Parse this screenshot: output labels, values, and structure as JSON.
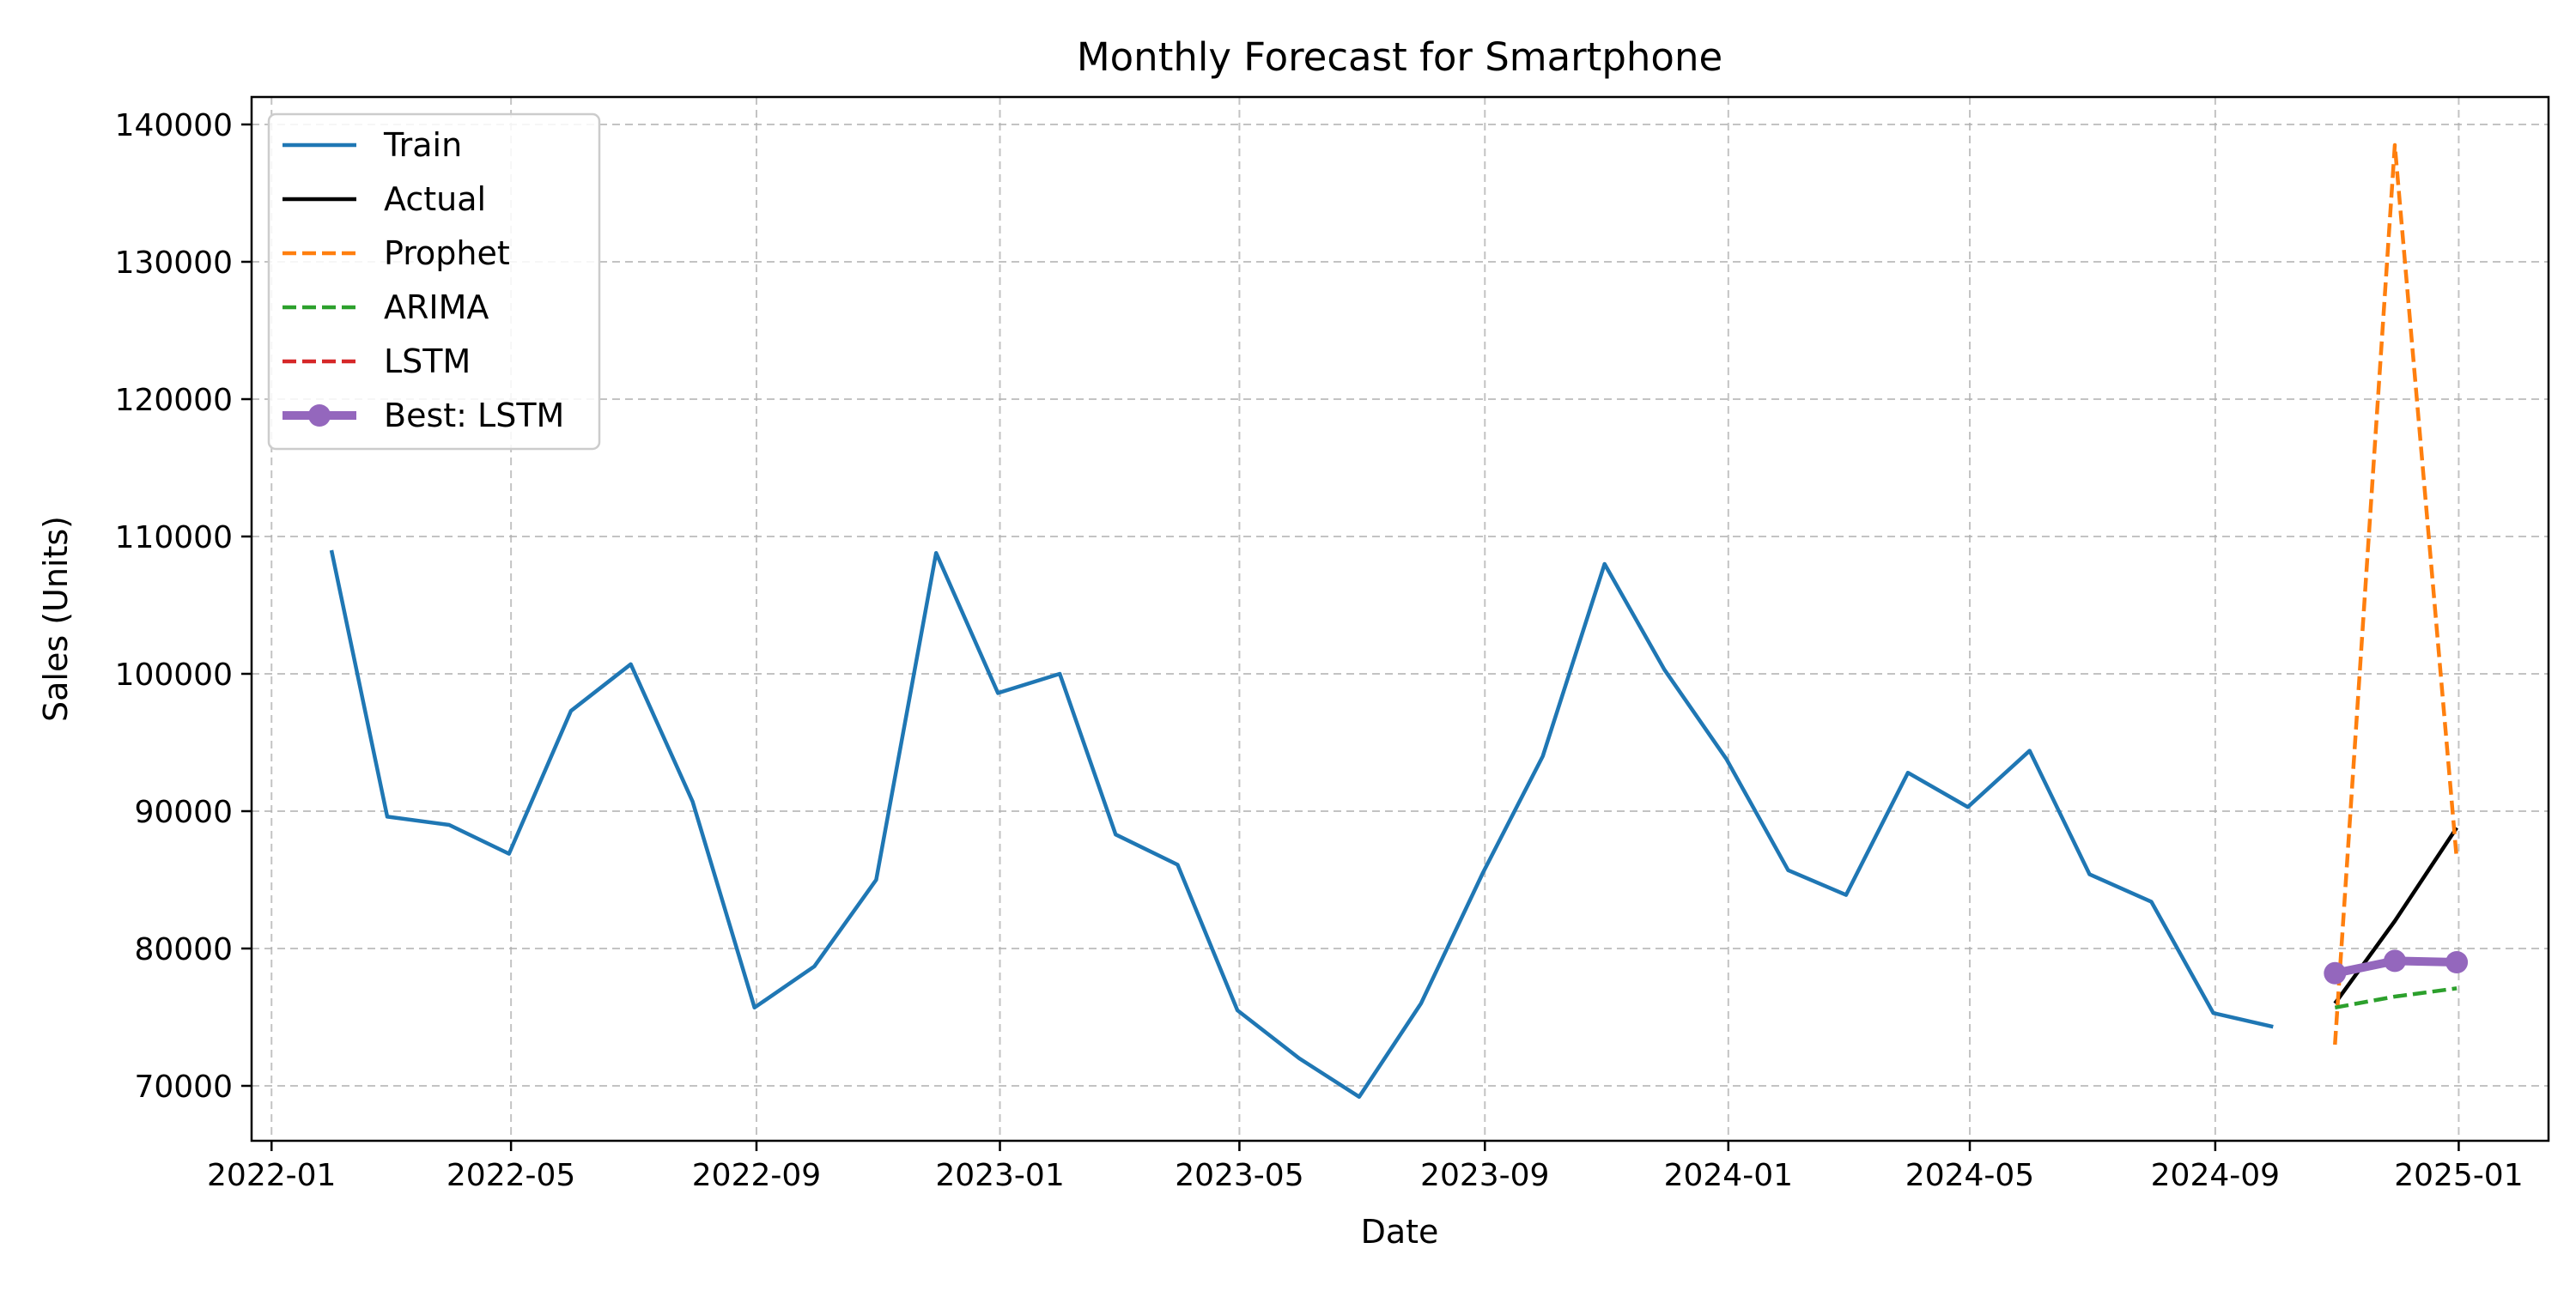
{
  "chart_data": {
    "type": "line",
    "title": "Monthly Forecast for Smartphone",
    "xlabel": "Date",
    "ylabel": "Sales (Units)",
    "x_ticks": [
      "2022-01",
      "2022-05",
      "2022-09",
      "2023-01",
      "2023-05",
      "2023-09",
      "2024-01",
      "2024-05",
      "2024-09",
      "2025-01"
    ],
    "y_ticks": [
      70000,
      80000,
      90000,
      100000,
      110000,
      120000,
      130000,
      140000
    ],
    "y_tick_labels": [
      "70000",
      "80000",
      "90000",
      "100000",
      "110000",
      "120000",
      "130000",
      "140000"
    ],
    "ylim": [
      66000,
      142000
    ],
    "xlim": [
      "2021-12-22",
      "2025-02-15"
    ],
    "grid": true,
    "legend_position": "top-left",
    "series": [
      {
        "name": "Train",
        "color": "#1f77b4",
        "style": "solid",
        "x": [
          "2022-01-31",
          "2022-02-28",
          "2022-03-31",
          "2022-04-30",
          "2022-05-31",
          "2022-06-30",
          "2022-07-31",
          "2022-08-31",
          "2022-09-30",
          "2022-10-31",
          "2022-11-30",
          "2022-12-31",
          "2023-01-31",
          "2023-02-28",
          "2023-03-31",
          "2023-04-30",
          "2023-05-31",
          "2023-06-30",
          "2023-07-31",
          "2023-08-31",
          "2023-09-30",
          "2023-10-31",
          "2023-11-30",
          "2023-12-31",
          "2024-01-31",
          "2024-02-29",
          "2024-03-31",
          "2024-04-30",
          "2024-05-31",
          "2024-06-30",
          "2024-07-31",
          "2024-08-31",
          "2024-09-30"
        ],
        "values": [
          109000,
          89600,
          89000,
          86900,
          97300,
          100700,
          90700,
          75700,
          78700,
          85000,
          108800,
          98600,
          100000,
          88300,
          86100,
          75500,
          72000,
          69200,
          76000,
          85500,
          94000,
          108000,
          100300,
          93800,
          85700,
          83900,
          92800,
          90300,
          94400,
          85400,
          83400,
          75300,
          74300
        ]
      },
      {
        "name": "Actual",
        "color": "#000000",
        "style": "solid",
        "x": [
          "2024-10-31",
          "2024-11-30",
          "2024-12-31"
        ],
        "values": [
          76000,
          82000,
          88800
        ]
      },
      {
        "name": "Prophet",
        "color": "#ff7f0e",
        "style": "dashed",
        "x": [
          "2024-10-31",
          "2024-11-30",
          "2024-12-31"
        ],
        "values": [
          73000,
          138500,
          86500
        ]
      },
      {
        "name": "ARIMA",
        "color": "#2ca02c",
        "style": "dashed",
        "x": [
          "2024-10-31",
          "2024-11-30",
          "2024-12-31"
        ],
        "values": [
          75700,
          76500,
          77100
        ]
      },
      {
        "name": "LSTM",
        "color": "#d62728",
        "style": "dashed",
        "x": [
          "2024-10-31",
          "2024-11-30",
          "2024-12-31"
        ],
        "values": [
          78200,
          79100,
          79000
        ]
      },
      {
        "name": "Best: LSTM",
        "color": "#9467bd",
        "style": "thick-marker",
        "x": [
          "2024-10-31",
          "2024-11-30",
          "2024-12-31"
        ],
        "values": [
          78200,
          79100,
          79000
        ]
      }
    ]
  }
}
